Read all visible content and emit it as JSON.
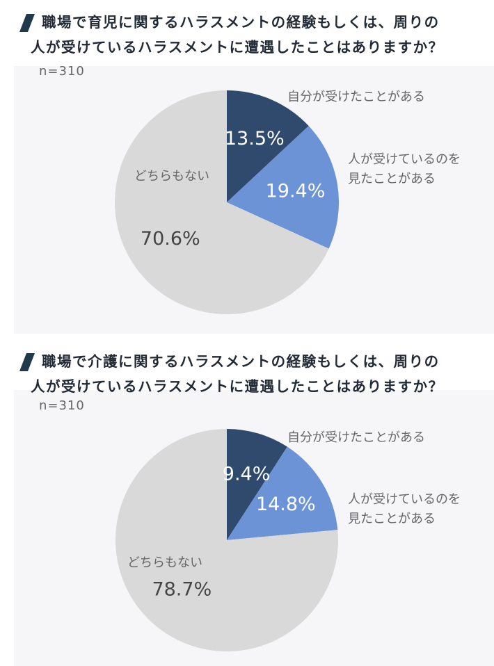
{
  "colors": {
    "self": "#2f4a6d",
    "others": "#6b93d6",
    "neither": "#d9d9d9",
    "accent": "#203a4c"
  },
  "chart_data": [
    {
      "type": "pie",
      "title_lines": [
        "職場で育児に関するハラスメントの経験もしくは、周りの",
        "人が受けているハラスメントに遭遇したことはありますか？"
      ],
      "sample": "n=310",
      "slices": [
        {
          "label": "自分が受けたことがある",
          "value": 13.5,
          "value_text": "13.5%",
          "color": "#2f4a6d"
        },
        {
          "label_lines": [
            "人が受けているのを",
            "見たことがある"
          ],
          "value": 19.4,
          "value_text": "19.4%",
          "color": "#6b93d6"
        },
        {
          "label": "どちらもない",
          "value": 70.6,
          "value_text": "70.6%",
          "color": "#d9d9d9"
        }
      ]
    },
    {
      "type": "pie",
      "title_lines": [
        "職場で介護に関するハラスメントの経験もしくは、周りの",
        "人が受けているハラスメントに遭遇したことはありますか？"
      ],
      "sample": "n=310",
      "slices": [
        {
          "label": "自分が受けたことがある",
          "value": 9.4,
          "value_text": "9.4%",
          "color": "#2f4a6d"
        },
        {
          "label_lines": [
            "人が受けているのを",
            "見たことがある"
          ],
          "value": 14.8,
          "value_text": "14.8%",
          "color": "#6b93d6"
        },
        {
          "label": "どちらもない",
          "value": 78.7,
          "value_text": "78.7%",
          "color": "#d9d9d9"
        }
      ]
    }
  ]
}
